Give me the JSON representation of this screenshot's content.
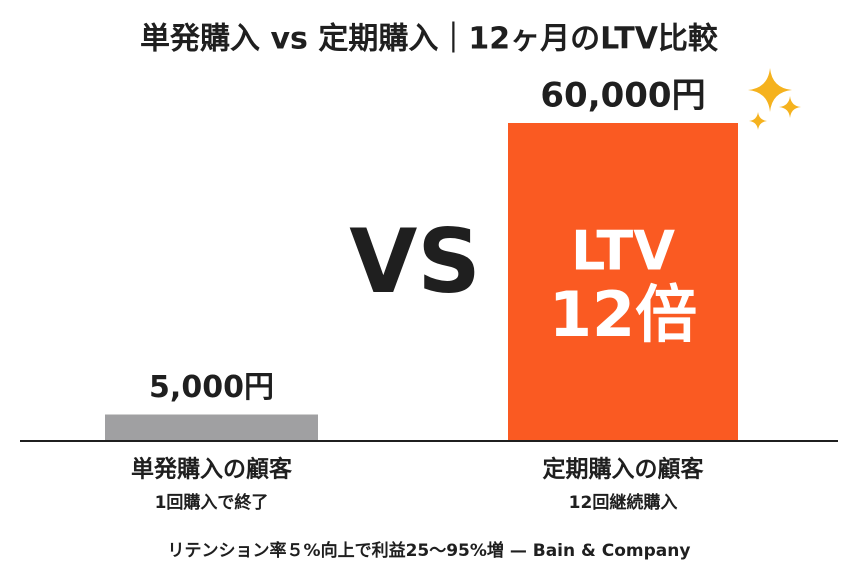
{
  "chart_data": {
    "type": "bar",
    "title": "単発購入 vs 定期購入｜12ヶ月のLTV比較",
    "categories": [
      "単発購入の顧客",
      "定期購入の顧客"
    ],
    "category_notes": [
      "1回購入で終了",
      "12回継続購入"
    ],
    "values": [
      5000,
      60000
    ],
    "value_labels": [
      "5,000円",
      "60,000円"
    ],
    "colors": [
      "#a0a0a2",
      "#fa5a22"
    ],
    "comparison_label": "VS",
    "bar_annotation": [
      "LTV",
      "12倍"
    ],
    "footnote": "リテンション率５%向上で利益25〜95%増 — Bain & Company"
  }
}
